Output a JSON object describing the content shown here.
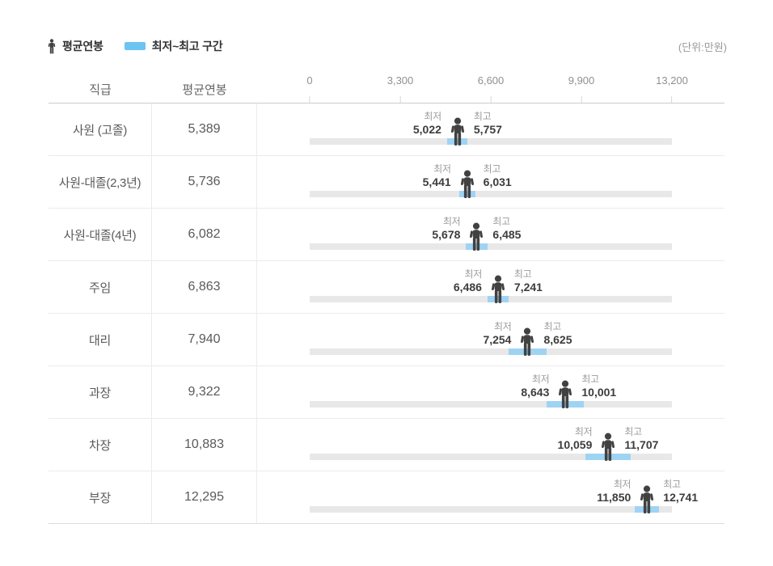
{
  "legend": {
    "avg_label": "평균연봉",
    "range_label": "최저~최고 구간"
  },
  "unit_note": "(단위:만원)",
  "table": {
    "col_grade": "직급",
    "col_avg": "평균연봉"
  },
  "labels": {
    "min": "최저",
    "max": "최고"
  },
  "colors": {
    "legend_blue": "#6cc4f1",
    "range_blue": "#9fd3f4",
    "icon_dark": "#414141",
    "track_gray": "#e8e8e8"
  },
  "chart_data": {
    "type": "bar",
    "subtype": "range-bar-with-average-marker",
    "unit": "만원",
    "xlim": [
      0,
      13200
    ],
    "axis_ticks": [
      "0",
      "3,300",
      "6,600",
      "9,900",
      "13,200"
    ],
    "axis_values": [
      0,
      3300,
      6600,
      9900,
      13200
    ],
    "rows": [
      {
        "grade": "사원 (고졸)",
        "avg": 5389,
        "min": 5022,
        "max": 5757,
        "avg_text": "5,389",
        "min_text": "5,022",
        "max_text": "5,757"
      },
      {
        "grade": "사원-대졸(2,3년)",
        "avg": 5736,
        "min": 5441,
        "max": 6031,
        "avg_text": "5,736",
        "min_text": "5,441",
        "max_text": "6,031"
      },
      {
        "grade": "사원-대졸(4년)",
        "avg": 6082,
        "min": 5678,
        "max": 6485,
        "avg_text": "6,082",
        "min_text": "5,678",
        "max_text": "6,485"
      },
      {
        "grade": "주임",
        "avg": 6863,
        "min": 6486,
        "max": 7241,
        "avg_text": "6,863",
        "min_text": "6,486",
        "max_text": "7,241"
      },
      {
        "grade": "대리",
        "avg": 7940,
        "min": 7254,
        "max": 8625,
        "avg_text": "7,940",
        "min_text": "7,254",
        "max_text": "8,625"
      },
      {
        "grade": "과장",
        "avg": 9322,
        "min": 8643,
        "max": 10001,
        "avg_text": "9,322",
        "min_text": "8,643",
        "max_text": "10,001"
      },
      {
        "grade": "차장",
        "avg": 10883,
        "min": 10059,
        "max": 11707,
        "avg_text": "10,883",
        "min_text": "10,059",
        "max_text": "11,707"
      },
      {
        "grade": "부장",
        "avg": 12295,
        "min": 11850,
        "max": 12741,
        "avg_text": "12,295",
        "min_text": "11,850",
        "max_text": "12,741"
      }
    ]
  }
}
